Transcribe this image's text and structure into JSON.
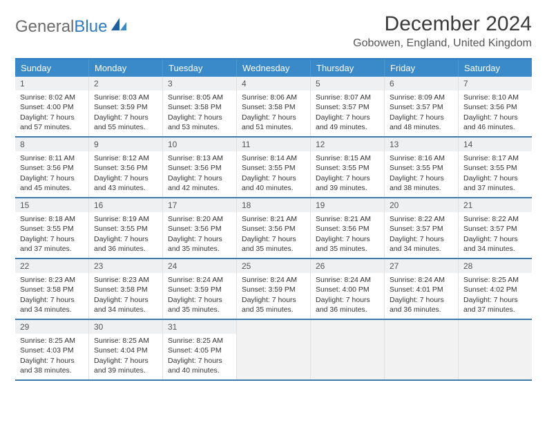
{
  "logo": {
    "text1": "General",
    "text2": "Blue"
  },
  "title": "December 2024",
  "location": "Gobowen, England, United Kingdom",
  "colors": {
    "header_bg": "#3a8ac9",
    "header_text": "#ffffff",
    "border_blue": "#3a7aad",
    "daynum_bg": "#eef0f1",
    "text": "#333333",
    "logo_gray": "#6b6b6b",
    "logo_blue": "#2f7bbf",
    "empty_bg": "#f2f2f2"
  },
  "typography": {
    "title_fontsize": 30,
    "location_fontsize": 16,
    "dayheader_fontsize": 13,
    "body_fontsize": 10.5
  },
  "day_headers": [
    "Sunday",
    "Monday",
    "Tuesday",
    "Wednesday",
    "Thursday",
    "Friday",
    "Saturday"
  ],
  "weeks": [
    [
      {
        "num": "1",
        "sunrise": "Sunrise: 8:02 AM",
        "sunset": "Sunset: 4:00 PM",
        "daylight": "Daylight: 7 hours and 57 minutes."
      },
      {
        "num": "2",
        "sunrise": "Sunrise: 8:03 AM",
        "sunset": "Sunset: 3:59 PM",
        "daylight": "Daylight: 7 hours and 55 minutes."
      },
      {
        "num": "3",
        "sunrise": "Sunrise: 8:05 AM",
        "sunset": "Sunset: 3:58 PM",
        "daylight": "Daylight: 7 hours and 53 minutes."
      },
      {
        "num": "4",
        "sunrise": "Sunrise: 8:06 AM",
        "sunset": "Sunset: 3:58 PM",
        "daylight": "Daylight: 7 hours and 51 minutes."
      },
      {
        "num": "5",
        "sunrise": "Sunrise: 8:07 AM",
        "sunset": "Sunset: 3:57 PM",
        "daylight": "Daylight: 7 hours and 49 minutes."
      },
      {
        "num": "6",
        "sunrise": "Sunrise: 8:09 AM",
        "sunset": "Sunset: 3:57 PM",
        "daylight": "Daylight: 7 hours and 48 minutes."
      },
      {
        "num": "7",
        "sunrise": "Sunrise: 8:10 AM",
        "sunset": "Sunset: 3:56 PM",
        "daylight": "Daylight: 7 hours and 46 minutes."
      }
    ],
    [
      {
        "num": "8",
        "sunrise": "Sunrise: 8:11 AM",
        "sunset": "Sunset: 3:56 PM",
        "daylight": "Daylight: 7 hours and 45 minutes."
      },
      {
        "num": "9",
        "sunrise": "Sunrise: 8:12 AM",
        "sunset": "Sunset: 3:56 PM",
        "daylight": "Daylight: 7 hours and 43 minutes."
      },
      {
        "num": "10",
        "sunrise": "Sunrise: 8:13 AM",
        "sunset": "Sunset: 3:56 PM",
        "daylight": "Daylight: 7 hours and 42 minutes."
      },
      {
        "num": "11",
        "sunrise": "Sunrise: 8:14 AM",
        "sunset": "Sunset: 3:55 PM",
        "daylight": "Daylight: 7 hours and 40 minutes."
      },
      {
        "num": "12",
        "sunrise": "Sunrise: 8:15 AM",
        "sunset": "Sunset: 3:55 PM",
        "daylight": "Daylight: 7 hours and 39 minutes."
      },
      {
        "num": "13",
        "sunrise": "Sunrise: 8:16 AM",
        "sunset": "Sunset: 3:55 PM",
        "daylight": "Daylight: 7 hours and 38 minutes."
      },
      {
        "num": "14",
        "sunrise": "Sunrise: 8:17 AM",
        "sunset": "Sunset: 3:55 PM",
        "daylight": "Daylight: 7 hours and 37 minutes."
      }
    ],
    [
      {
        "num": "15",
        "sunrise": "Sunrise: 8:18 AM",
        "sunset": "Sunset: 3:55 PM",
        "daylight": "Daylight: 7 hours and 37 minutes."
      },
      {
        "num": "16",
        "sunrise": "Sunrise: 8:19 AM",
        "sunset": "Sunset: 3:55 PM",
        "daylight": "Daylight: 7 hours and 36 minutes."
      },
      {
        "num": "17",
        "sunrise": "Sunrise: 8:20 AM",
        "sunset": "Sunset: 3:56 PM",
        "daylight": "Daylight: 7 hours and 35 minutes."
      },
      {
        "num": "18",
        "sunrise": "Sunrise: 8:21 AM",
        "sunset": "Sunset: 3:56 PM",
        "daylight": "Daylight: 7 hours and 35 minutes."
      },
      {
        "num": "19",
        "sunrise": "Sunrise: 8:21 AM",
        "sunset": "Sunset: 3:56 PM",
        "daylight": "Daylight: 7 hours and 35 minutes."
      },
      {
        "num": "20",
        "sunrise": "Sunrise: 8:22 AM",
        "sunset": "Sunset: 3:57 PM",
        "daylight": "Daylight: 7 hours and 34 minutes."
      },
      {
        "num": "21",
        "sunrise": "Sunrise: 8:22 AM",
        "sunset": "Sunset: 3:57 PM",
        "daylight": "Daylight: 7 hours and 34 minutes."
      }
    ],
    [
      {
        "num": "22",
        "sunrise": "Sunrise: 8:23 AM",
        "sunset": "Sunset: 3:58 PM",
        "daylight": "Daylight: 7 hours and 34 minutes."
      },
      {
        "num": "23",
        "sunrise": "Sunrise: 8:23 AM",
        "sunset": "Sunset: 3:58 PM",
        "daylight": "Daylight: 7 hours and 34 minutes."
      },
      {
        "num": "24",
        "sunrise": "Sunrise: 8:24 AM",
        "sunset": "Sunset: 3:59 PM",
        "daylight": "Daylight: 7 hours and 35 minutes."
      },
      {
        "num": "25",
        "sunrise": "Sunrise: 8:24 AM",
        "sunset": "Sunset: 3:59 PM",
        "daylight": "Daylight: 7 hours and 35 minutes."
      },
      {
        "num": "26",
        "sunrise": "Sunrise: 8:24 AM",
        "sunset": "Sunset: 4:00 PM",
        "daylight": "Daylight: 7 hours and 36 minutes."
      },
      {
        "num": "27",
        "sunrise": "Sunrise: 8:24 AM",
        "sunset": "Sunset: 4:01 PM",
        "daylight": "Daylight: 7 hours and 36 minutes."
      },
      {
        "num": "28",
        "sunrise": "Sunrise: 8:25 AM",
        "sunset": "Sunset: 4:02 PM",
        "daylight": "Daylight: 7 hours and 37 minutes."
      }
    ],
    [
      {
        "num": "29",
        "sunrise": "Sunrise: 8:25 AM",
        "sunset": "Sunset: 4:03 PM",
        "daylight": "Daylight: 7 hours and 38 minutes."
      },
      {
        "num": "30",
        "sunrise": "Sunrise: 8:25 AM",
        "sunset": "Sunset: 4:04 PM",
        "daylight": "Daylight: 7 hours and 39 minutes."
      },
      {
        "num": "31",
        "sunrise": "Sunrise: 8:25 AM",
        "sunset": "Sunset: 4:05 PM",
        "daylight": "Daylight: 7 hours and 40 minutes."
      },
      null,
      null,
      null,
      null
    ]
  ]
}
